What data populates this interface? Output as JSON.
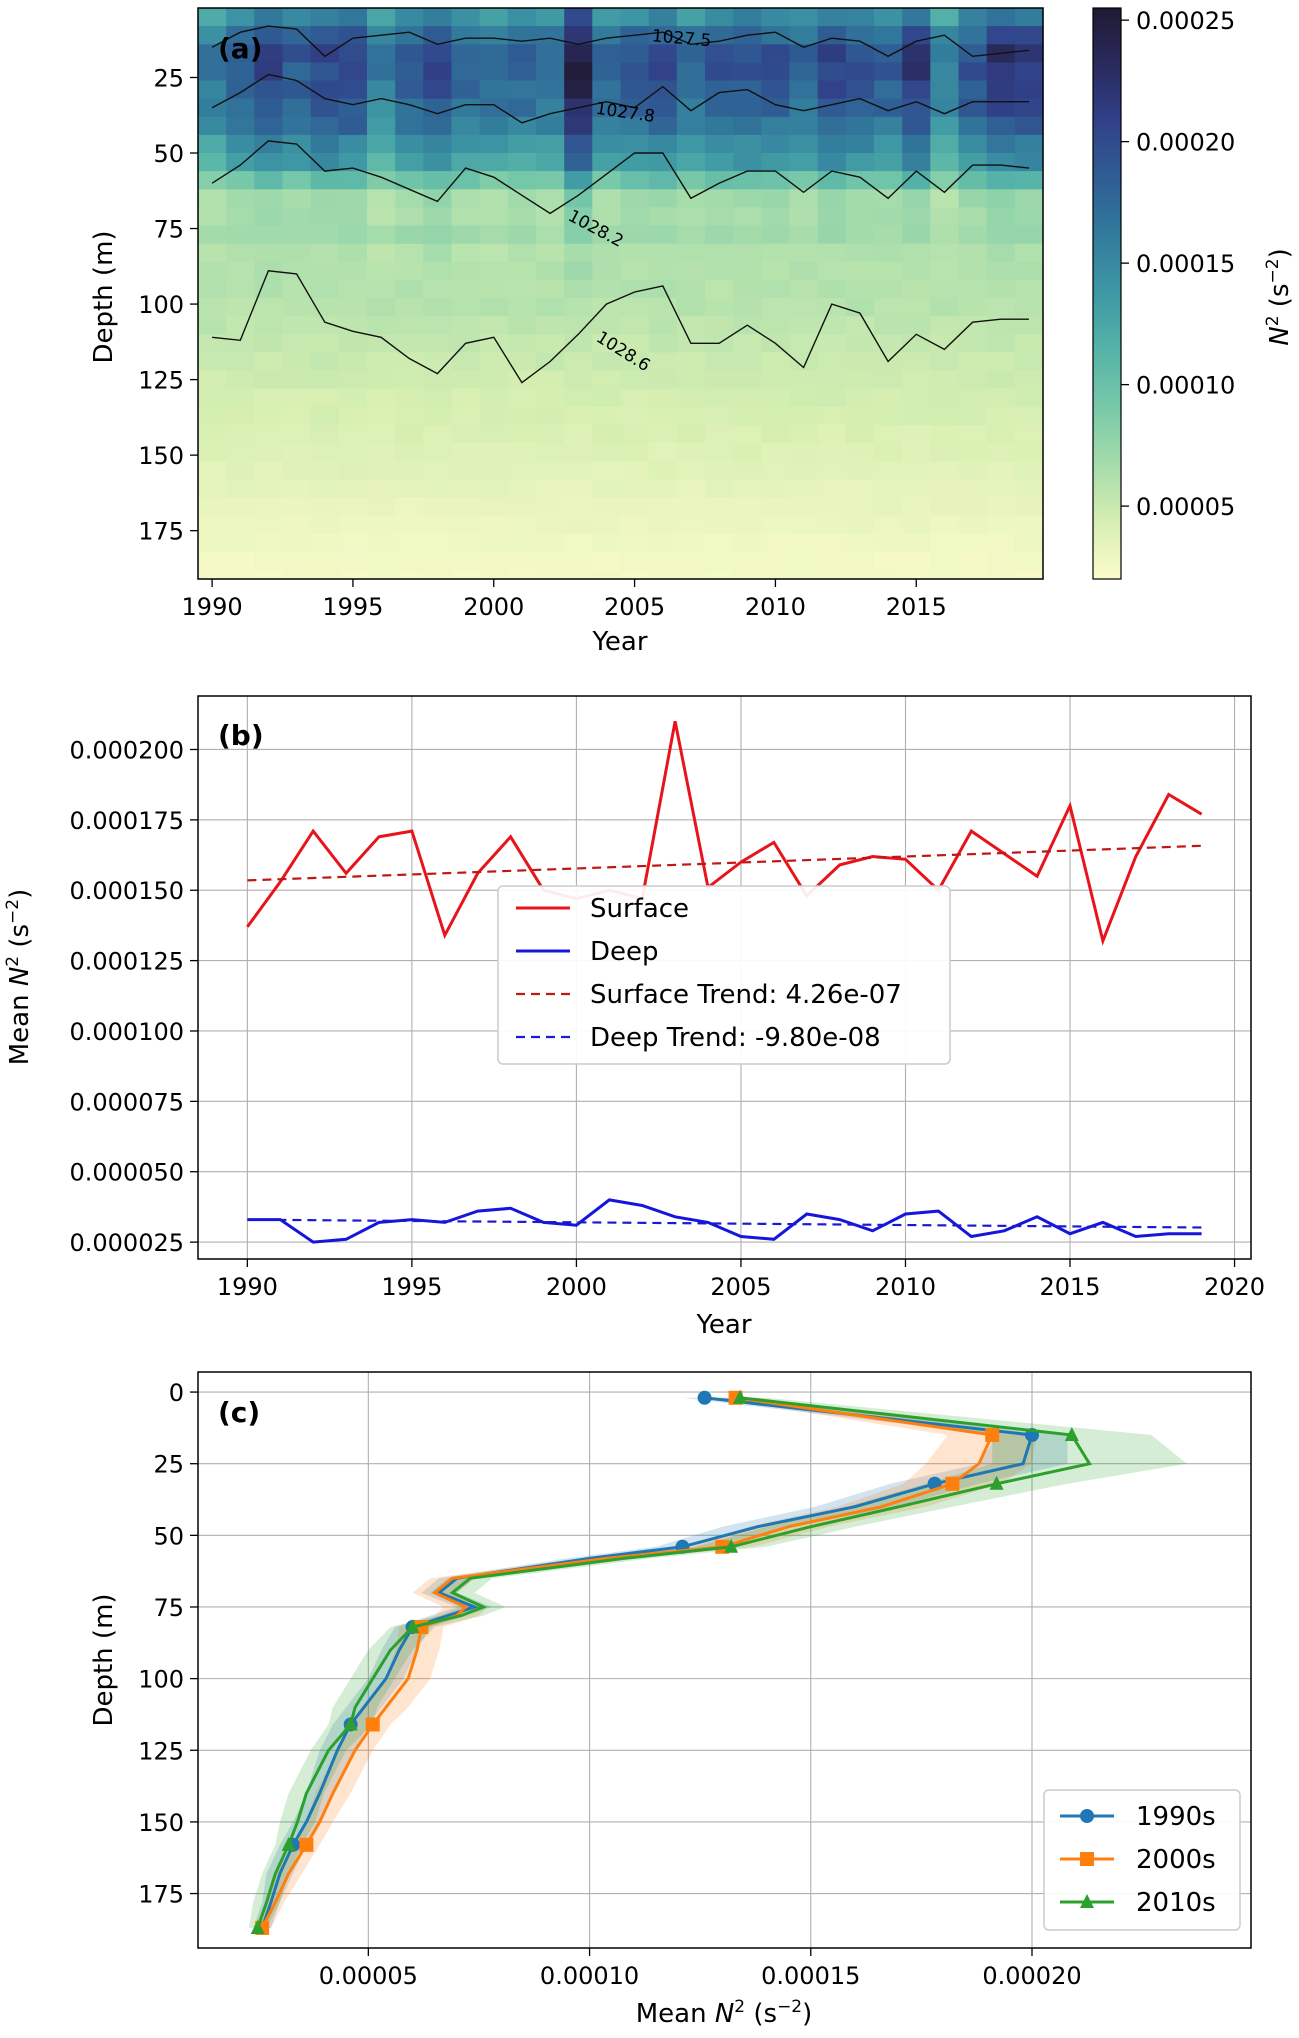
{
  "chart_data": [
    {
      "panel": "(a)",
      "type": "heatmap",
      "xlabel": "Year",
      "ylabel": "Depth (m)",
      "xlim": [
        1989.5,
        2019.5
      ],
      "ylim": [
        191,
        2
      ],
      "xticks": [
        1990,
        1995,
        2000,
        2005,
        2010,
        2015
      ],
      "yticks": [
        25,
        50,
        75,
        100,
        125,
        150,
        175
      ],
      "colorbar": {
        "label": "N² (s⁻²)",
        "min": 2e-05,
        "max": 0.000255,
        "ticks": [
          5e-05,
          0.0001,
          0.00015,
          0.0002,
          0.00025
        ],
        "tick_labels": [
          "0.00005",
          "0.00010",
          "0.00015",
          "0.00020",
          "0.00025"
        ],
        "colormap": [
          "#fdfccc",
          "#d6efb1",
          "#a6dcab",
          "#78c9a9",
          "#56b3a8",
          "#3e98a4",
          "#327b9c",
          "#2f5e94",
          "#31428a",
          "#2a2a5e",
          "#1f1a33"
        ]
      },
      "years": [
        1990,
        1991,
        1992,
        1993,
        1994,
        1995,
        1996,
        1997,
        1998,
        1999,
        2000,
        2001,
        2002,
        2003,
        2004,
        2005,
        2006,
        2007,
        2008,
        2009,
        2010,
        2011,
        2012,
        2013,
        2014,
        2015,
        2016,
        2017,
        2018,
        2019
      ],
      "contours": [
        {
          "label": "1027.5",
          "depths": [
            15,
            10,
            8,
            9,
            18,
            12,
            11,
            10,
            14,
            12,
            12,
            13,
            12,
            14,
            12,
            11,
            10,
            14,
            13,
            11,
            10,
            15,
            12,
            13,
            18,
            13,
            11,
            18,
            17,
            16
          ]
        },
        {
          "label": "1027.8",
          "depths": [
            35,
            30,
            24,
            26,
            32,
            34,
            32,
            34,
            37,
            34,
            34,
            40,
            37,
            35,
            33,
            35,
            28,
            36,
            30,
            29,
            34,
            36,
            34,
            32,
            36,
            33,
            37,
            33,
            33,
            33
          ]
        },
        {
          "label": "1028.2",
          "depths": [
            60,
            54,
            46,
            47,
            56,
            55,
            58,
            62,
            66,
            55,
            58,
            64,
            70,
            64,
            57,
            50,
            50,
            65,
            60,
            56,
            56,
            63,
            56,
            58,
            65,
            56,
            63,
            54,
            54,
            55
          ]
        },
        {
          "label": "1028.6",
          "depths": [
            111,
            112,
            89,
            90,
            106,
            109,
            111,
            118,
            123,
            113,
            111,
            126,
            119,
            110,
            100,
            96,
            94,
            113,
            113,
            107,
            113,
            121,
            100,
            103,
            119,
            110,
            115,
            106,
            105,
            105
          ]
        }
      ]
    },
    {
      "panel": "(b)",
      "type": "line",
      "xlabel": "Year",
      "ylabel": "Mean N² (s⁻²)",
      "xlim": [
        1988.5,
        2020.5
      ],
      "ylim": [
        1.9e-05,
        0.000219
      ],
      "xticks": [
        1990,
        1995,
        2000,
        2005,
        2010,
        2015,
        2020
      ],
      "yticks": [
        2.5e-05,
        5e-05,
        7.5e-05,
        0.0001,
        0.000125,
        0.00015,
        0.000175,
        0.0002
      ],
      "ytick_labels": [
        "0.000025",
        "0.000050",
        "0.000075",
        "0.000100",
        "0.000125",
        "0.000150",
        "0.000175",
        "0.000200"
      ],
      "grid": true,
      "legend_position": "center",
      "x": [
        1990,
        1991,
        1992,
        1993,
        1994,
        1995,
        1996,
        1997,
        1998,
        1999,
        2000,
        2001,
        2002,
        2003,
        2004,
        2005,
        2006,
        2007,
        2008,
        2009,
        2010,
        2011,
        2012,
        2013,
        2014,
        2015,
        2016,
        2017,
        2018,
        2019
      ],
      "series": [
        {
          "name": "Surface",
          "color": "#e8141c",
          "style": "solid",
          "values": [
            0.000137,
            0.000153,
            0.000171,
            0.000156,
            0.000169,
            0.000171,
            0.000134,
            0.000156,
            0.000169,
            0.00015,
            0.000147,
            0.00015,
            0.000147,
            0.00021,
            0.000151,
            0.00016,
            0.000167,
            0.000148,
            0.000159,
            0.000162,
            0.000161,
            0.00015,
            0.000171,
            0.000163,
            0.000155,
            0.00018,
            0.000132,
            0.000162,
            0.000184,
            0.000177
          ]
        },
        {
          "name": "Deep",
          "color": "#1515dc",
          "style": "solid",
          "values": [
            3.3e-05,
            3.3e-05,
            2.5e-05,
            2.6e-05,
            3.2e-05,
            3.3e-05,
            3.2e-05,
            3.6e-05,
            3.7e-05,
            3.2e-05,
            3.1e-05,
            4e-05,
            3.8e-05,
            3.4e-05,
            3.2e-05,
            2.7e-05,
            2.6e-05,
            3.5e-05,
            3.3e-05,
            2.9e-05,
            3.5e-05,
            3.6e-05,
            2.7e-05,
            2.9e-05,
            3.4e-05,
            2.8e-05,
            3.2e-05,
            2.7e-05,
            2.8e-05,
            2.8e-05
          ]
        },
        {
          "name": "Surface Trend: 4.26e-07",
          "color": "#c01616",
          "style": "dashed",
          "values_endpoints": [
            [
              1990,
              0.0001535
            ],
            [
              2019,
              0.0001658
            ]
          ]
        },
        {
          "name": "Deep Trend: -9.80e-08",
          "color": "#1a1ad0",
          "style": "dashed",
          "values_endpoints": [
            [
              1990,
              3.3e-05
            ],
            [
              2019,
              3.02e-05
            ]
          ]
        }
      ]
    },
    {
      "panel": "(c)",
      "type": "line",
      "xlabel": "Mean N² (s⁻²)",
      "ylabel": "Depth (m)",
      "xlim": [
        1.15e-05,
        0.0002495
      ],
      "ylim": [
        194,
        -7
      ],
      "xticks": [
        5e-05,
        0.0001,
        0.00015,
        0.0002
      ],
      "xtick_labels": [
        "0.00005",
        "0.00010",
        "0.00015",
        "0.00020"
      ],
      "yticks": [
        0,
        25,
        50,
        75,
        100,
        125,
        150,
        175
      ],
      "grid": true,
      "legend_position": "lower right",
      "depth": [
        2,
        15,
        25,
        32,
        40,
        47,
        54,
        58,
        65,
        70,
        75,
        78,
        82,
        90,
        100,
        110,
        116,
        125,
        140,
        150,
        158,
        168,
        178,
        187
      ],
      "series": [
        {
          "name": "1990s",
          "color": "#1f77b4",
          "marker": "circle",
          "values": [
            0.000126,
            0.0002,
            0.000198,
            0.000178,
            0.00016,
            0.000138,
            0.000121,
            0.0001,
            7e-05,
            6.6e-05,
            7.4e-05,
            6.8e-05,
            6e-05,
            5.7e-05,
            5.4e-05,
            4.9e-05,
            4.6e-05,
            4.3e-05,
            3.9e-05,
            3.6e-05,
            3.3e-05,
            3e-05,
            2.8e-05,
            2.6e-05
          ],
          "band": [
            5e-06,
            8e-06,
            1e-05,
            1e-05,
            9e-06,
            8e-06,
            6e-06,
            5e-06,
            4e-06,
            4e-06,
            4e-06,
            4e-06,
            4e-06,
            4e-06,
            4e-06,
            4e-06,
            4e-06,
            4e-06,
            3e-06,
            3e-06,
            3e-06,
            3e-06,
            2e-06,
            2e-06
          ]
        },
        {
          "name": "2000s",
          "color": "#ff7f0e",
          "marker": "square",
          "values": [
            0.000133,
            0.000191,
            0.000188,
            0.000182,
            0.000166,
            0.000145,
            0.00013,
            0.000104,
            6.9e-05,
            6.5e-05,
            7.2e-05,
            7e-05,
            6.2e-05,
            6.1e-05,
            5.9e-05,
            5.4e-05,
            5.1e-05,
            4.7e-05,
            4.2e-05,
            3.9e-05,
            3.6e-05,
            3.2e-05,
            2.9e-05,
            2.6e-05
          ],
          "band": [
            5e-06,
            1e-05,
            1.2e-05,
            1.1e-05,
            1e-05,
            9e-06,
            7e-06,
            6e-06,
            5e-06,
            5e-06,
            5e-06,
            5e-06,
            5e-06,
            5e-06,
            5e-06,
            5e-06,
            4e-06,
            4e-06,
            4e-06,
            3e-06,
            3e-06,
            3e-06,
            2e-06,
            2e-06
          ]
        },
        {
          "name": "2010s",
          "color": "#2ca02c",
          "marker": "triangle",
          "values": [
            0.000134,
            0.000209,
            0.000213,
            0.000192,
            0.00017,
            0.00015,
            0.000132,
            0.000108,
            7.3e-05,
            6.9e-05,
            7.6e-05,
            7.1e-05,
            6e-05,
            5.5e-05,
            5.1e-05,
            4.7e-05,
            4.6e-05,
            4.1e-05,
            3.6e-05,
            3.4e-05,
            3.2e-05,
            2.9e-05,
            2.7e-05,
            2.5e-05
          ],
          "band": [
            6e-06,
            1.8e-05,
            2.2e-05,
            1.6e-05,
            1.2e-05,
            1e-05,
            8e-06,
            6e-06,
            5e-06,
            5e-06,
            5e-06,
            5e-06,
            5e-06,
            5e-06,
            5e-06,
            5e-06,
            5e-06,
            4e-06,
            4e-06,
            4e-06,
            3e-06,
            3e-06,
            3e-06,
            2e-06
          ]
        }
      ],
      "marker_depths": [
        2,
        15,
        32,
        54,
        82,
        116,
        158,
        187
      ]
    }
  ]
}
